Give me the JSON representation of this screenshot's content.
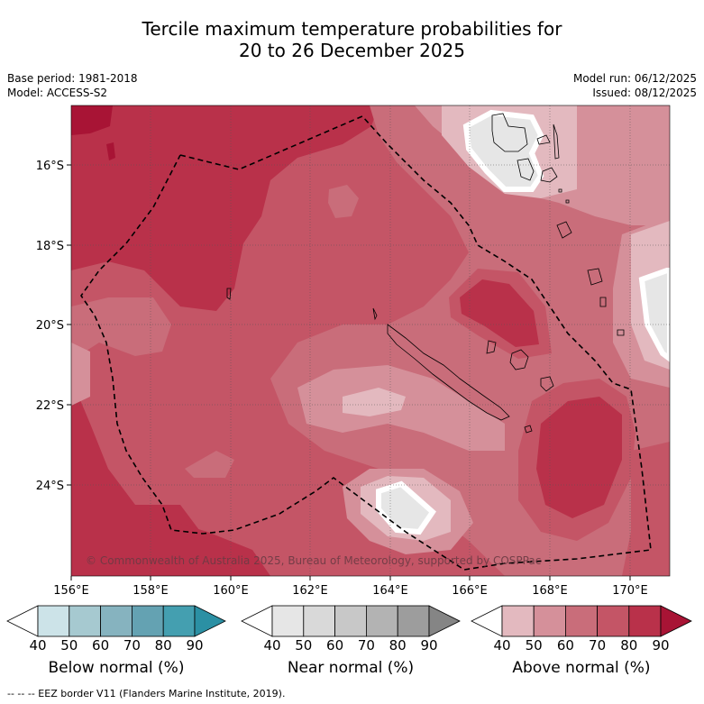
{
  "header": {
    "title_line1": "Tercile maximum temperature probabilities for",
    "title_line2": "20 to 26 December 2025",
    "base_period": "Base period: 1981-2018",
    "model": "Model: ACCESS-S2",
    "model_run": "Model run: 06/12/2025",
    "issued": "Issued: 08/12/2025"
  },
  "map": {
    "lon_ticks": [
      "156°E",
      "158°E",
      "160°E",
      "162°E",
      "164°E",
      "166°E",
      "168°E",
      "170°E"
    ],
    "lat_ticks": [
      "16°S",
      "18°S",
      "20°S",
      "22°S",
      "24°S"
    ],
    "copyright": "© Commonwealth of Australia 2025, Bureau of Meteorology, supported by COSPPac"
  },
  "colorbars": [
    {
      "label": "Below normal (%)",
      "ticks": [
        "40",
        "50",
        "60",
        "70",
        "80",
        "90"
      ],
      "colors": [
        "#ffffff",
        "#cce3e8",
        "#a6c9d0",
        "#86b3bf",
        "#64a2b2",
        "#449fb0",
        "#2b90a4"
      ]
    },
    {
      "label": "Near normal (%)",
      "ticks": [
        "40",
        "50",
        "60",
        "70",
        "80",
        "90"
      ],
      "colors": [
        "#ffffff",
        "#e6e6e6",
        "#d9d9d9",
        "#c8c8c8",
        "#b3b3b3",
        "#9d9d9d",
        "#858585"
      ]
    },
    {
      "label": "Above normal (%)",
      "ticks": [
        "40",
        "50",
        "60",
        "70",
        "80",
        "90"
      ],
      "colors": [
        "#ffffff",
        "#e3b9bf",
        "#d5909a",
        "#c96d7a",
        "#c45566",
        "#b9314a",
        "#a81435"
      ]
    }
  ],
  "footnote": "--  --  -- EEZ border V11 (Flanders Marine Institute, 2019).",
  "colors": {
    "above_50": "#e3b9bf",
    "above_60": "#d5909a",
    "above_70": "#c96d7a",
    "above_80": "#c45566",
    "above_90": "#b9314a",
    "above_max": "#a81435",
    "near_50": "#e6e6e6"
  }
}
